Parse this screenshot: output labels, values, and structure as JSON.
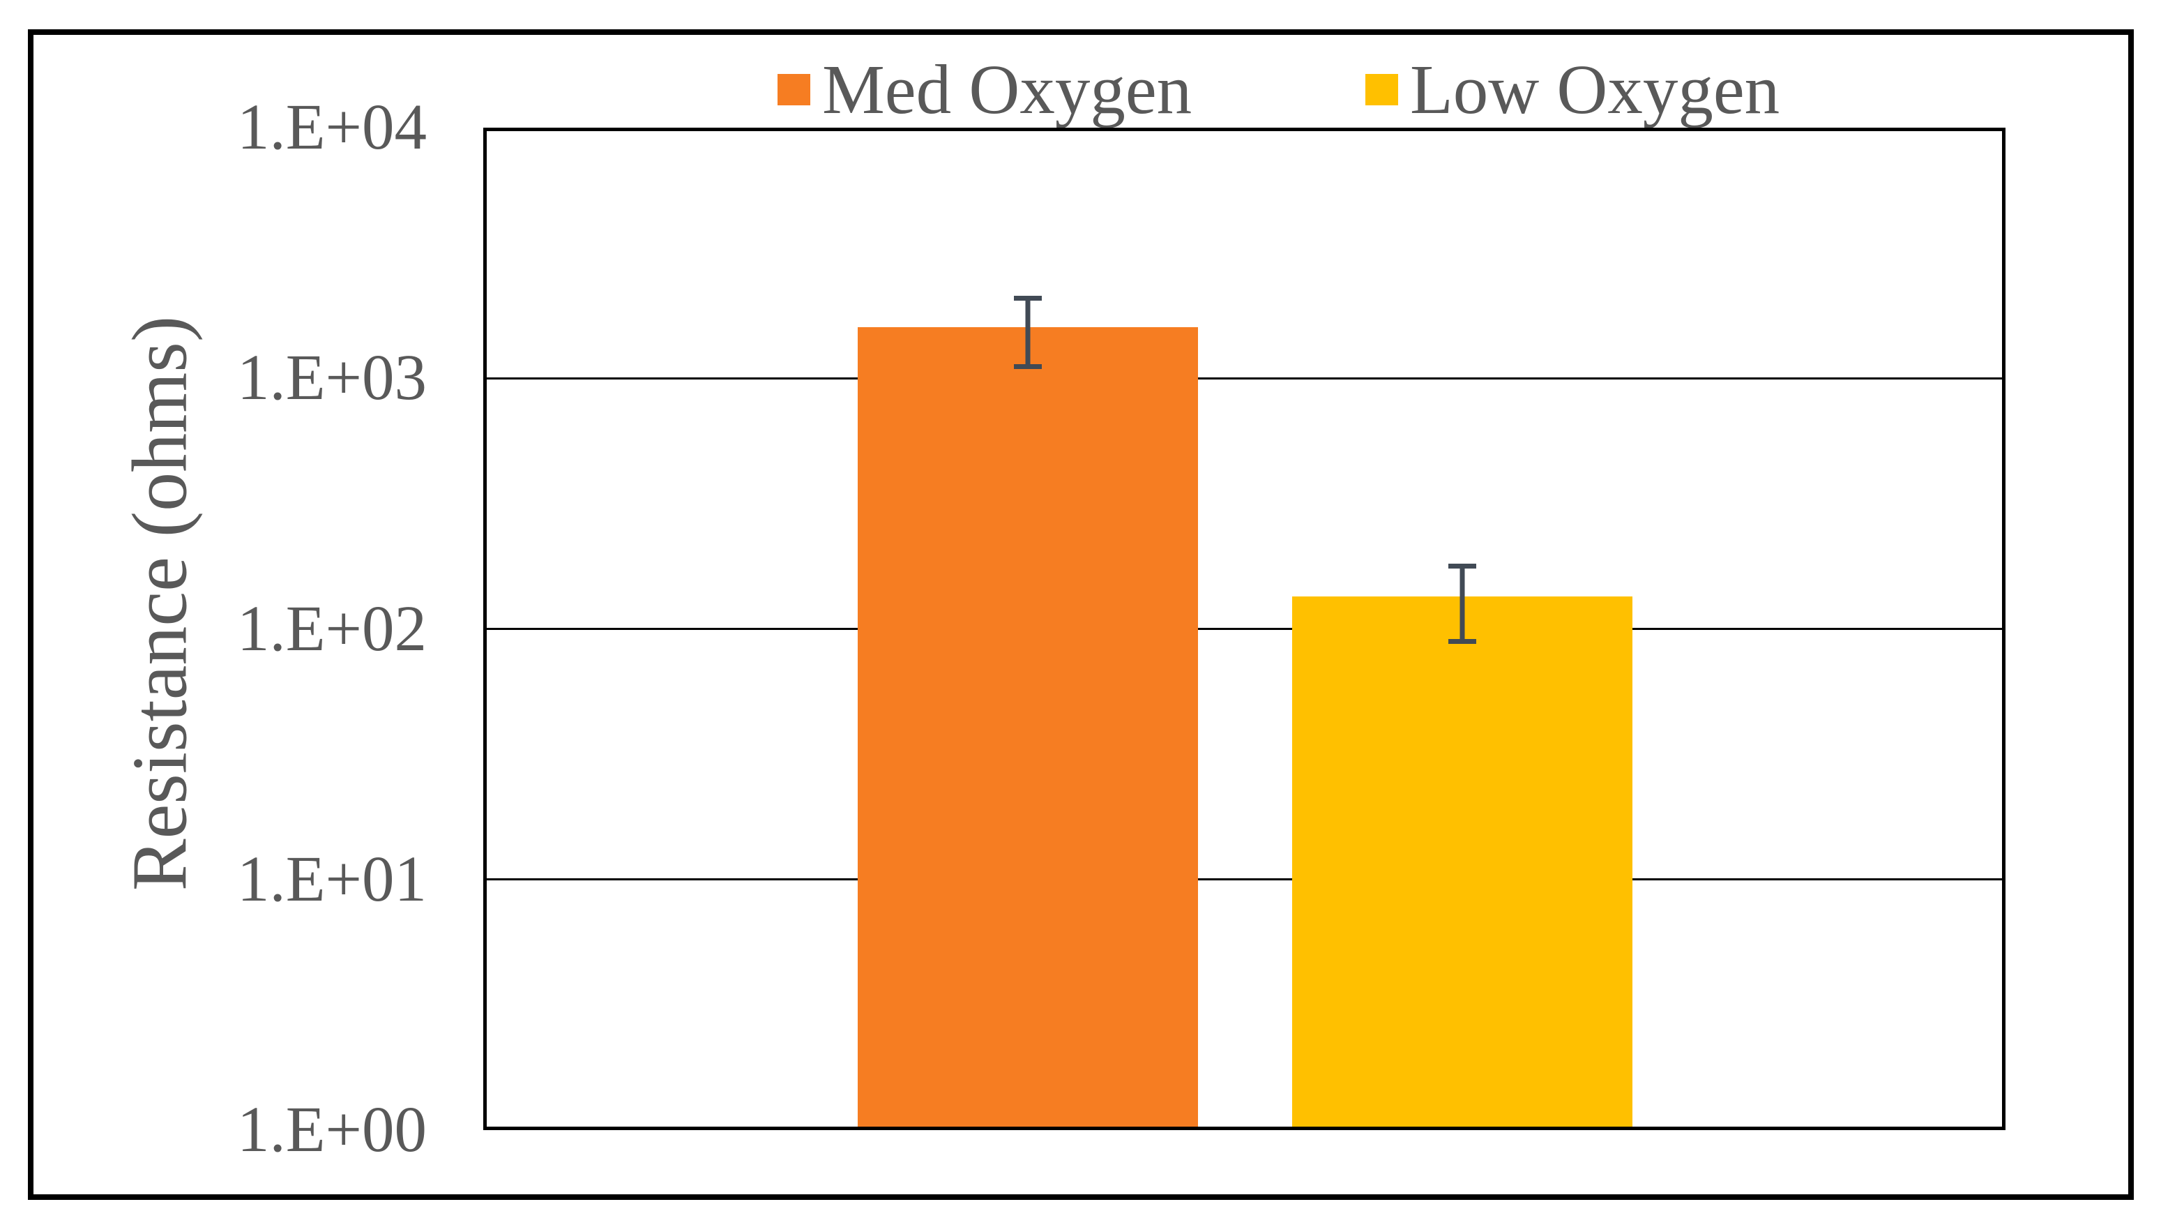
{
  "chart_data": {
    "type": "bar",
    "title": "",
    "xlabel": "",
    "ylabel": "Resistance (ohms)",
    "y_scale": "log",
    "ylim": [
      1,
      10000
    ],
    "ytick_labels": [
      "1.E+00",
      "1.E+01",
      "1.E+02",
      "1.E+03",
      "1.E+04"
    ],
    "gridlines": "horizontal-log-decades",
    "legend_position": "top",
    "frame_color": "#000000",
    "text_color": "#595959",
    "error_bar_color": "#414a55",
    "series": [
      {
        "name": "Med Oxygen",
        "value": 1600,
        "error_low": 1090,
        "error_high": 2130,
        "color": "#F67D22"
      },
      {
        "name": "Low Oxygen",
        "value": 135,
        "error_low": 87,
        "error_high": 182,
        "color": "#FFC000"
      }
    ]
  }
}
